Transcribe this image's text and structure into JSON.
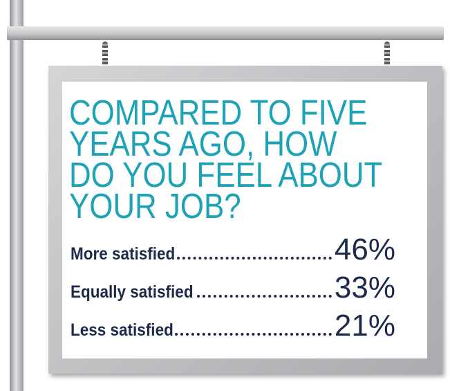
{
  "sign": {
    "title_lines": [
      "COMPARED TO FIVE",
      "YEARS AGO, HOW",
      "DO YOU FEEL ABOUT",
      "YOUR JOB?"
    ],
    "rows": [
      [
        "More satisfied",
        "46%"
      ],
      [
        "Equally satisfied",
        "33%"
      ],
      [
        "Less satisfied",
        "21%"
      ]
    ]
  }
}
